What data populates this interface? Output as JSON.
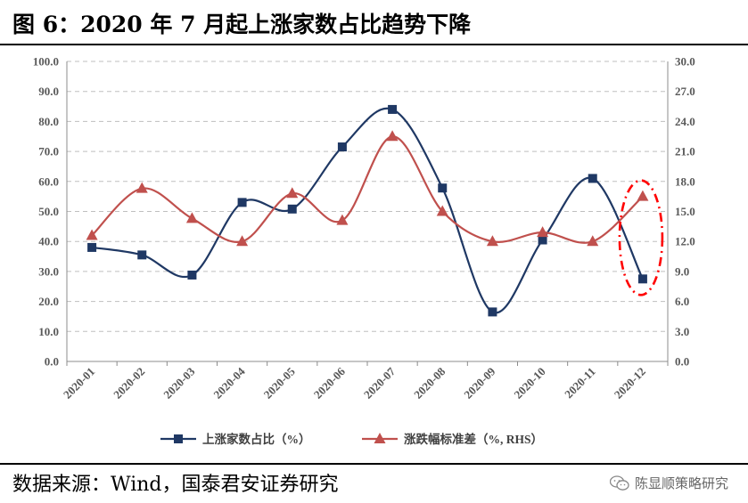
{
  "figure": {
    "title": "图 6：2020 年 7 月起上涨家数占比趋势下降",
    "source": "数据来源：Wind，国泰君安证券研究",
    "watermark": "陈显顺策略研究"
  },
  "colors": {
    "series1": "#1f3864",
    "series2": "#c0504d",
    "highlight": "#ff0000",
    "grid": "#bfbfbf"
  },
  "chart_data": {
    "type": "line",
    "categories": [
      "2020-01",
      "2020-02",
      "2020-03",
      "2020-04",
      "2020-05",
      "2020-06",
      "2020-07",
      "2020-08",
      "2020-09",
      "2020-10",
      "2020-11",
      "2020-12"
    ],
    "series": [
      {
        "name": "上涨家数占比（%）",
        "axis": "left",
        "marker": "square",
        "smooth": true,
        "values": [
          38.0,
          35.5,
          28.8,
          53.0,
          50.8,
          71.5,
          84.0,
          57.8,
          16.5,
          40.5,
          61.0,
          27.5
        ]
      },
      {
        "name": "涨跌幅标准差（%, RHS）",
        "axis": "right",
        "marker": "triangle",
        "smooth": true,
        "values": [
          12.6,
          17.3,
          14.3,
          12.0,
          16.8,
          14.1,
          22.5,
          15.0,
          12.0,
          12.9,
          12.0,
          16.5
        ]
      }
    ],
    "y_left": {
      "min": 0,
      "max": 100,
      "step": 10,
      "tick_labels": [
        "0.0",
        "10.0",
        "20.0",
        "30.0",
        "40.0",
        "50.0",
        "60.0",
        "70.0",
        "80.0",
        "90.0",
        "100.0"
      ]
    },
    "y_right": {
      "min": 0,
      "max": 30,
      "step": 3,
      "tick_labels": [
        "0.0",
        "3.0",
        "6.0",
        "9.0",
        "12.0",
        "15.0",
        "18.0",
        "21.0",
        "24.0",
        "27.0",
        "30.0"
      ]
    },
    "grid": "horizontal dashed",
    "legend": "bottom",
    "annotations": [
      {
        "type": "dashed-ellipse",
        "category": "2020-12"
      }
    ]
  }
}
